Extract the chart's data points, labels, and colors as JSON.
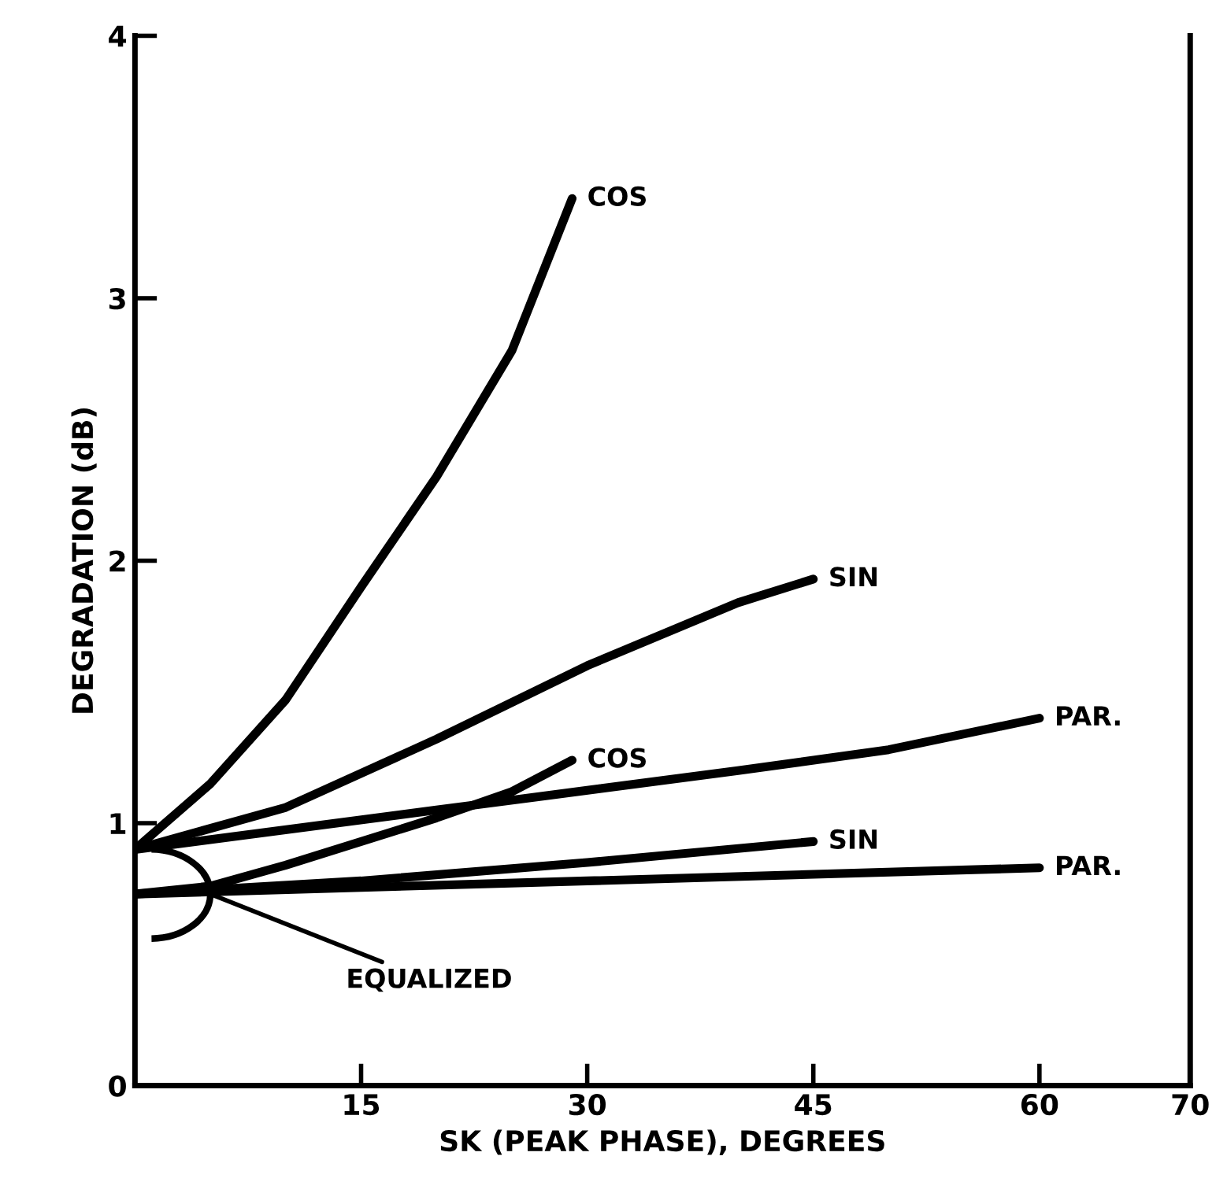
{
  "chart_data": {
    "type": "line",
    "xlabel": "SK (PEAK PHASE), DEGREES",
    "ylabel": "DEGRADATION (dB)",
    "xlim": [
      0,
      70
    ],
    "xticks": [
      15,
      30,
      45,
      60,
      70
    ],
    "ylim": [
      0,
      4
    ],
    "yticks": [
      0,
      1,
      2,
      3,
      4
    ],
    "grid": false,
    "legend": false,
    "marker": "none",
    "line_style": "solid",
    "series": [
      {
        "name": "COS",
        "color": "#000000",
        "x": [
          0,
          5,
          10,
          15,
          20,
          25,
          29
        ],
        "values": [
          0.9,
          1.15,
          1.47,
          1.9,
          2.32,
          2.8,
          3.38
        ]
      },
      {
        "name": "SIN",
        "color": "#000000",
        "x": [
          0,
          10,
          20,
          30,
          40,
          45
        ],
        "values": [
          0.9,
          1.06,
          1.32,
          1.6,
          1.84,
          1.93
        ]
      },
      {
        "name": "PAR.",
        "color": "#000000",
        "x": [
          0,
          20,
          40,
          50,
          60
        ],
        "values": [
          0.9,
          1.05,
          1.2,
          1.28,
          1.4
        ]
      },
      {
        "name": "COS",
        "color": "#000000",
        "x": [
          0,
          5,
          10,
          20,
          25,
          29
        ],
        "values": [
          0.73,
          0.76,
          0.84,
          1.02,
          1.12,
          1.24
        ]
      },
      {
        "name": "SIN",
        "color": "#000000",
        "x": [
          0,
          15,
          30,
          45
        ],
        "values": [
          0.73,
          0.78,
          0.85,
          0.93
        ]
      },
      {
        "name": "PAR.",
        "color": "#000000",
        "x": [
          0,
          30,
          60
        ],
        "values": [
          0.73,
          0.78,
          0.83
        ]
      }
    ],
    "annotations": [
      {
        "text": "EQUALIZED",
        "x": 5,
        "y": 0.73
      }
    ]
  }
}
